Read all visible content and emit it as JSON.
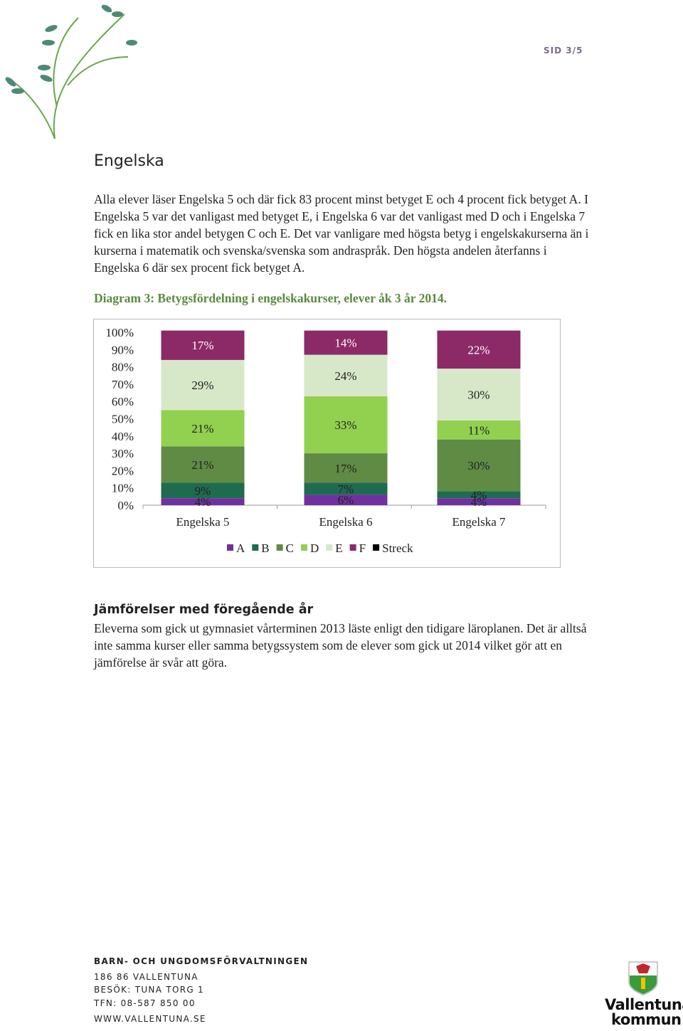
{
  "header": {
    "page": "SID 3/5"
  },
  "heading": "Engelska",
  "paragraph": "Alla elever läser Engelska 5 och där fick 83 procent minst betyget E och 4 procent fick betyget A. I Engelska 5 var det vanligast med betyget E, i Engelska 6 var det vanligast med D och i Engelska 7 fick en lika stor andel betygen C och E. Det var vanligare med högsta betyg i engelskakurserna än i kurserna i matematik och svenska/svenska som andraspråk. Den högsta andelen återfanns i Engelska 6 där sex procent fick betyget A.",
  "caption": "Diagram 3: Betygsfördelning i engelskakurser, elever åk 3 år 2014.",
  "chart_data": {
    "type": "stacked_bar",
    "categories": [
      "Engelska 5",
      "Engelska 6",
      "Engelska 7"
    ],
    "series": [
      {
        "name": "A",
        "color": "#7030a0",
        "values": [
          4,
          6,
          4
        ],
        "value_labels": [
          "4%",
          "6%",
          "4%"
        ]
      },
      {
        "name": "B",
        "color": "#1f6b50",
        "values": [
          9,
          7,
          4
        ],
        "value_labels": [
          "9%",
          "7%",
          "4%"
        ]
      },
      {
        "name": "C",
        "color": "#5f8b45",
        "values": [
          21,
          17,
          30
        ],
        "value_labels": [
          "21%",
          "17%",
          "30%"
        ]
      },
      {
        "name": "D",
        "color": "#92d050",
        "values": [
          21,
          33,
          11
        ],
        "value_labels": [
          "21%",
          "33%",
          "11%"
        ]
      },
      {
        "name": "E",
        "color": "#d7e8c9",
        "values": [
          29,
          24,
          30
        ],
        "value_labels": [
          "29%",
          "24%",
          "30%"
        ]
      },
      {
        "name": "F",
        "color": "#8b2a67",
        "values": [
          17,
          14,
          22
        ],
        "value_labels": [
          "17%",
          "14%",
          "22%"
        ]
      },
      {
        "name": "Streck",
        "color": "#000000",
        "values": [
          0,
          0,
          0
        ]
      }
    ],
    "ylim": [
      0,
      100
    ],
    "yticks": [
      {
        "value": 0,
        "label": "0%"
      },
      {
        "value": 10,
        "label": "10%"
      },
      {
        "value": 20,
        "label": "20%"
      },
      {
        "value": 30,
        "label": "30%"
      },
      {
        "value": 40,
        "label": "40%"
      },
      {
        "value": 50,
        "label": "50%"
      },
      {
        "value": 60,
        "label": "60%"
      },
      {
        "value": 70,
        "label": "70%"
      },
      {
        "value": 80,
        "label": "80%"
      },
      {
        "value": 90,
        "label": "90%"
      },
      {
        "value": 100,
        "label": "100%"
      }
    ],
    "legend": "bottom"
  },
  "section2": {
    "heading": "Jämförelser med föregående år",
    "paragraph": "Eleverna som gick ut gymnasiet vårterminen 2013 läste enligt den tidigare läroplanen. Det är alltså inte samma kurser eller samma betygssystem som de elever som gick ut 2014 vilket gör att en jämförelse är svår att göra."
  },
  "footer": {
    "org": "BARN- OCH UNGDOMSFÖRVALTNINGEN",
    "lines": [
      "186 86 VALLENTUNA",
      "BESÖK: TUNA TORG 1",
      "TFN: 08-587 850 00",
      "WWW.VALLENTUNA.SE"
    ]
  },
  "logo": {
    "lines": [
      "Vallentuna",
      "kommun"
    ]
  }
}
